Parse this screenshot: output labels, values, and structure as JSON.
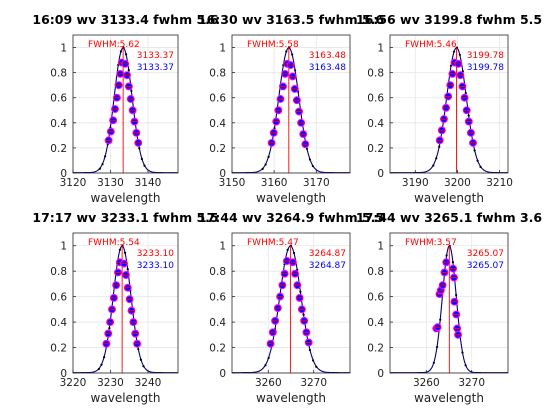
{
  "colors": {
    "red": "#ff0000",
    "blue": "#0000ff",
    "curve": "#000080",
    "grid": "#e6e6e6",
    "axis": "#262626",
    "marker": "#ff00ff"
  },
  "chart_data": [
    {
      "type": "line",
      "title": "16:09 wv   3133.4   fwhm  5.6",
      "xlabel": "wavelength",
      "ylabel": "",
      "xlim": [
        3120,
        3148
      ],
      "ylim": [
        0,
        1.1
      ],
      "xticks": [
        3120,
        3130,
        3140
      ],
      "yticks": [
        0,
        0.2,
        0.4,
        0.6,
        0.8,
        1
      ],
      "grid": true,
      "fwhm_label": "FWHM:5.62",
      "red_label": "3133.37",
      "blue_label": "3133.37",
      "peak": 3133.37,
      "fwhm": 5.62,
      "points": [
        [
          3129.5,
          0.26
        ],
        [
          3130.1,
          0.33
        ],
        [
          3130.7,
          0.42
        ],
        [
          3131.2,
          0.51
        ],
        [
          3131.7,
          0.6
        ],
        [
          3132.2,
          0.7
        ],
        [
          3132.6,
          0.79
        ],
        [
          3133.0,
          0.88
        ],
        [
          3133.9,
          0.87
        ],
        [
          3134.4,
          0.78
        ],
        [
          3134.9,
          0.69
        ],
        [
          3135.4,
          0.59
        ],
        [
          3135.9,
          0.5
        ],
        [
          3136.4,
          0.41
        ],
        [
          3136.9,
          0.32
        ],
        [
          3137.4,
          0.24
        ]
      ]
    },
    {
      "type": "line",
      "title": "16:30 wv   3163.5   fwhm  5.6",
      "xlabel": "wavelength",
      "ylabel": "",
      "xlim": [
        3150,
        3178
      ],
      "ylim": [
        0,
        1.1
      ],
      "xticks": [
        3150,
        3160,
        3170
      ],
      "yticks": [
        0,
        0.2,
        0.4,
        0.6,
        0.8,
        1
      ],
      "grid": true,
      "fwhm_label": "FWHM:5.58",
      "red_label": "3163.48",
      "blue_label": "3163.48",
      "peak": 3163.48,
      "fwhm": 5.58,
      "points": [
        [
          3159.4,
          0.24
        ],
        [
          3159.9,
          0.32
        ],
        [
          3160.5,
          0.41
        ],
        [
          3161.0,
          0.5
        ],
        [
          3161.5,
          0.59
        ],
        [
          3162.1,
          0.69
        ],
        [
          3162.6,
          0.79
        ],
        [
          3163.1,
          0.87
        ],
        [
          3163.9,
          0.86
        ],
        [
          3164.4,
          0.77
        ],
        [
          3164.9,
          0.67
        ],
        [
          3165.4,
          0.58
        ],
        [
          3165.9,
          0.49
        ],
        [
          3166.4,
          0.4
        ],
        [
          3166.9,
          0.31
        ],
        [
          3167.4,
          0.23
        ]
      ]
    },
    {
      "type": "line",
      "title": "16:56 wv   3199.8   fwhm  5.5",
      "xlabel": "wavelength",
      "ylabel": "",
      "xlim": [
        3184,
        3212
      ],
      "ylim": [
        0,
        1.1
      ],
      "xticks": [
        3190,
        3200,
        3210
      ],
      "yticks": [
        0,
        0.2,
        0.4,
        0.6,
        0.8,
        1
      ],
      "grid": true,
      "fwhm_label": "FWHM:5.46",
      "red_label": "3199.78",
      "blue_label": "3199.78",
      "peak": 3199.78,
      "fwhm": 5.46,
      "points": [
        [
          3195.8,
          0.26
        ],
        [
          3196.3,
          0.34
        ],
        [
          3196.8,
          0.43
        ],
        [
          3197.3,
          0.52
        ],
        [
          3197.8,
          0.61
        ],
        [
          3198.3,
          0.7
        ],
        [
          3198.8,
          0.79
        ],
        [
          3199.3,
          0.88
        ],
        [
          3200.2,
          0.87
        ],
        [
          3200.7,
          0.78
        ],
        [
          3201.2,
          0.69
        ],
        [
          3201.7,
          0.6
        ],
        [
          3202.2,
          0.5
        ],
        [
          3202.7,
          0.41
        ],
        [
          3203.2,
          0.32
        ],
        [
          3203.7,
          0.24
        ]
      ]
    },
    {
      "type": "line",
      "title": "17:17 wv   3233.1   fwhm  5.5",
      "xlabel": "wavelength",
      "ylabel": "",
      "xlim": [
        3220,
        3248
      ],
      "ylim": [
        0,
        1.1
      ],
      "xticks": [
        3220,
        3230,
        3240
      ],
      "yticks": [
        0,
        0.2,
        0.4,
        0.6,
        0.8,
        1
      ],
      "grid": true,
      "fwhm_label": "FWHM:5.54",
      "red_label": "3233.10",
      "blue_label": "3233.10",
      "peak": 3233.1,
      "fwhm": 5.54,
      "points": [
        [
          3228.9,
          0.23
        ],
        [
          3229.4,
          0.31
        ],
        [
          3229.9,
          0.4
        ],
        [
          3230.4,
          0.5
        ],
        [
          3230.9,
          0.59
        ],
        [
          3231.5,
          0.69
        ],
        [
          3232.0,
          0.79
        ],
        [
          3232.5,
          0.87
        ],
        [
          3233.6,
          0.86
        ],
        [
          3234.1,
          0.77
        ],
        [
          3234.6,
          0.67
        ],
        [
          3235.1,
          0.58
        ],
        [
          3235.6,
          0.49
        ],
        [
          3236.1,
          0.4
        ],
        [
          3236.6,
          0.31
        ],
        [
          3237.1,
          0.23
        ]
      ]
    },
    {
      "type": "line",
      "title": "17:44 wv   3264.9   fwhm  5.5",
      "xlabel": "wavelength",
      "ylabel": "",
      "xlim": [
        3252,
        3278
      ],
      "ylim": [
        0,
        1.1
      ],
      "xticks": [
        3260,
        3270
      ],
      "yticks": [
        0,
        0.2,
        0.4,
        0.6,
        0.8,
        1
      ],
      "grid": true,
      "fwhm_label": "FWHM:5.47",
      "red_label": "3264.87",
      "blue_label": "3264.87",
      "peak": 3264.87,
      "fwhm": 5.47,
      "points": [
        [
          3260.5,
          0.23
        ],
        [
          3261.0,
          0.32
        ],
        [
          3261.5,
          0.41
        ],
        [
          3262.1,
          0.51
        ],
        [
          3262.6,
          0.6
        ],
        [
          3263.1,
          0.69
        ],
        [
          3263.6,
          0.78
        ],
        [
          3264.1,
          0.88
        ],
        [
          3265.4,
          0.87
        ],
        [
          3265.9,
          0.78
        ],
        [
          3266.4,
          0.69
        ],
        [
          3266.9,
          0.59
        ],
        [
          3267.4,
          0.5
        ],
        [
          3267.9,
          0.41
        ],
        [
          3268.4,
          0.32
        ],
        [
          3268.9,
          0.24
        ]
      ]
    },
    {
      "type": "line",
      "title": "17:44 wv   3265.1   fwhm  3.6",
      "xlabel": "wavelength",
      "ylabel": "",
      "xlim": [
        3252,
        3278
      ],
      "ylim": [
        0,
        1.1
      ],
      "xticks": [
        3260,
        3270
      ],
      "yticks": [
        0,
        0.2,
        0.4,
        0.6,
        0.8,
        1
      ],
      "grid": true,
      "fwhm_label": "FWHM:3.57",
      "red_label": "3265.07",
      "blue_label": "3265.07",
      "peak": 3265.07,
      "fwhm": 3.57,
      "points": [
        [
          3262.2,
          0.35
        ],
        [
          3262.5,
          0.36
        ],
        [
          3262.9,
          0.62
        ],
        [
          3263.2,
          0.65
        ],
        [
          3263.6,
          0.69
        ],
        [
          3264.0,
          0.79
        ],
        [
          3264.4,
          0.87
        ],
        [
          3265.9,
          0.82
        ],
        [
          3266.1,
          0.75
        ],
        [
          3266.2,
          0.56
        ],
        [
          3266.6,
          0.46
        ],
        [
          3266.8,
          0.35
        ],
        [
          3267.0,
          0.3
        ]
      ]
    }
  ]
}
